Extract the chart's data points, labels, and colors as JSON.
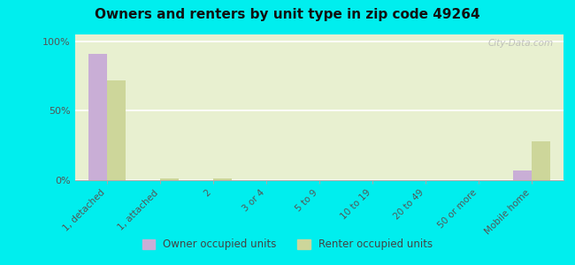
{
  "title": "Owners and renters by unit type in zip code 49264",
  "categories": [
    "1, detached",
    "1, attached",
    "2",
    "3 or 4",
    "5 to 9",
    "10 to 19",
    "20 to 49",
    "50 or more",
    "Mobile home"
  ],
  "owner_values": [
    91,
    0,
    0,
    0,
    0,
    0,
    0,
    0,
    7
  ],
  "renter_values": [
    72,
    1,
    1,
    0,
    0,
    0,
    0,
    0,
    28
  ],
  "owner_color": "#c9aed6",
  "renter_color": "#cdd69a",
  "background_color": "#00eeee",
  "plot_bg": "#e8f0d0",
  "ylabel_ticks": [
    "0%",
    "50%",
    "100%"
  ],
  "ytick_vals": [
    0,
    50,
    100
  ],
  "ylim": [
    0,
    105
  ],
  "bar_width": 0.35,
  "legend_owner": "Owner occupied units",
  "legend_renter": "Renter occupied units",
  "watermark": "City-Data.com"
}
